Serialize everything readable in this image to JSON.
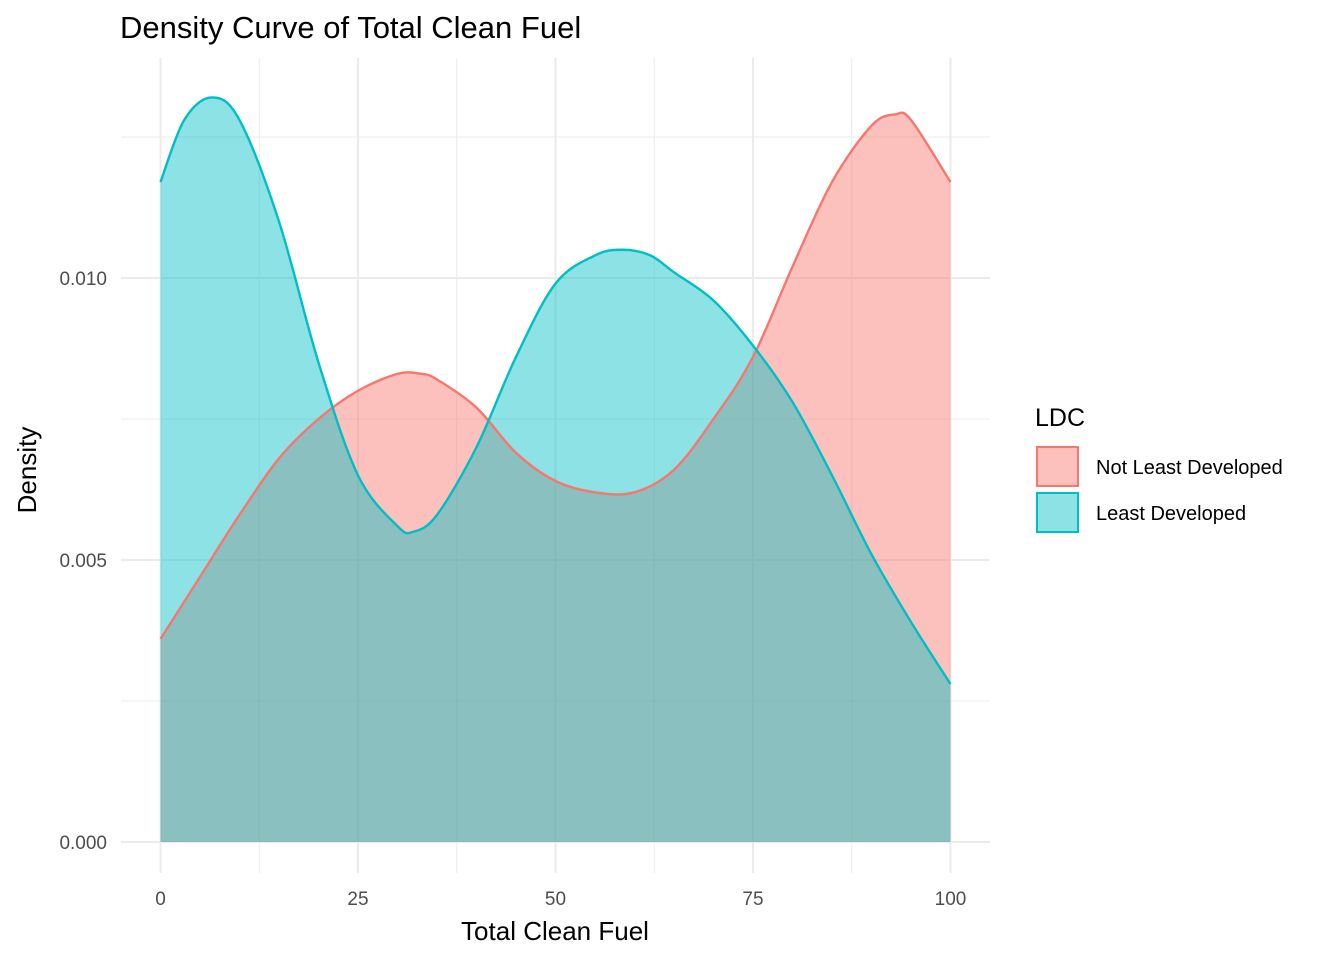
{
  "chart_data": {
    "type": "area",
    "title": "Density Curve of Total Clean Fuel",
    "xlabel": "Total Clean Fuel",
    "ylabel": "Density",
    "xlim": [
      -5,
      105
    ],
    "ylim": [
      -0.00055,
      0.0139
    ],
    "x_ticks": [
      0,
      25,
      50,
      75,
      100
    ],
    "x_tick_labels": [
      "0",
      "25",
      "50",
      "75",
      "100"
    ],
    "y_ticks": [
      0.0,
      0.005,
      0.01
    ],
    "y_tick_labels": [
      "0.000",
      "0.005",
      "0.010"
    ],
    "grid": true,
    "legend": {
      "title": "LDC",
      "position": "right"
    },
    "series": [
      {
        "name": "Not Least Developed",
        "color": "#F8766D",
        "x": [
          0,
          5,
          10,
          15,
          20,
          25,
          30,
          33,
          35,
          40,
          45,
          50,
          55,
          60,
          65,
          70,
          75,
          80,
          85,
          90,
          93,
          95,
          100
        ],
        "y": [
          0.0036,
          0.0047,
          0.0058,
          0.0068,
          0.0075,
          0.008,
          0.0083,
          0.0083,
          0.0082,
          0.0077,
          0.0069,
          0.0064,
          0.0062,
          0.0062,
          0.0066,
          0.0075,
          0.0086,
          0.0102,
          0.0117,
          0.0127,
          0.0129,
          0.0128,
          0.0117
        ]
      },
      {
        "name": "Least Developed",
        "color": "#00BFC4",
        "x": [
          0,
          3,
          6.5,
          10,
          15,
          20,
          25,
          30,
          32,
          35,
          40,
          45,
          50,
          55,
          58.5,
          62,
          65,
          70,
          75,
          80,
          85,
          90,
          95,
          100
        ],
        "y": [
          0.0117,
          0.0128,
          0.0132,
          0.0128,
          0.011,
          0.0085,
          0.0065,
          0.0056,
          0.0055,
          0.0058,
          0.007,
          0.0086,
          0.0099,
          0.0104,
          0.0105,
          0.0104,
          0.0101,
          0.0096,
          0.0088,
          0.0078,
          0.0065,
          0.0051,
          0.0039,
          0.0028
        ]
      }
    ]
  }
}
